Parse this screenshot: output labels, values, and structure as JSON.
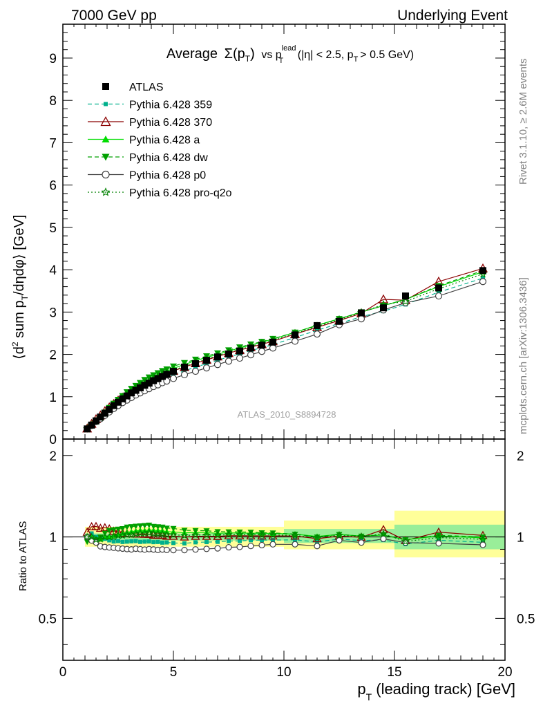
{
  "header": {
    "left": "7000 GeV pp",
    "right": "Underlying Event"
  },
  "side_labels": {
    "rivet": "Rivet 3.1.10, ≥ 2.6M events",
    "mcplots": "mcplots.cern.ch [arXiv:1306.3436]"
  },
  "watermark": "ATLAS_2010_S8894728",
  "colors": {
    "ATLAS": "#000000",
    "p359": "#00b08c",
    "p370": "#8b0000",
    "pa": "#00dd00",
    "pdw": "#00a000",
    "pp0": "#404040",
    "pq2o": "#008000",
    "band_inner": "#99ee99",
    "band_outer": "#ffff99"
  },
  "chart_data": [
    {
      "type": "line",
      "panel": "main",
      "title_parts": {
        "avg": "Average",
        "sigma": "Σ(p",
        "sigma_sub": "T",
        "sigma_close": ")",
        "vs": "vs p",
        "vs_sup": "lead",
        "vs_sub": "T",
        "cut1": "(|η| < 2.5, p",
        "cut_sub": "T",
        "cut2": "> 0.5 GeV)"
      },
      "ylabel_parts": {
        "a": "⟨d",
        "sup": "2",
        "b": " sum p",
        "sub": "T",
        "c": "/dηdφ⟩ [GeV]"
      },
      "xlim": [
        0,
        20
      ],
      "ylim": [
        0,
        9.8
      ],
      "yticks": [
        0,
        1,
        2,
        3,
        4,
        5,
        6,
        7,
        8,
        9
      ],
      "x": [
        1.1,
        1.3,
        1.5,
        1.7,
        1.9,
        2.1,
        2.3,
        2.5,
        2.7,
        2.9,
        3.1,
        3.3,
        3.5,
        3.7,
        3.9,
        4.1,
        4.3,
        4.5,
        4.7,
        5.0,
        5.5,
        6.0,
        6.5,
        7.0,
        7.5,
        8.0,
        8.5,
        9.0,
        9.5,
        10.5,
        11.5,
        12.5,
        13.5,
        14.5,
        15.5,
        17.0,
        19.0
      ],
      "series": [
        {
          "name": "ATLAS",
          "key": "ATLAS",
          "marker": "square",
          "line": "none",
          "values": [
            0.24,
            0.33,
            0.43,
            0.52,
            0.61,
            0.7,
            0.79,
            0.87,
            0.95,
            1.02,
            1.09,
            1.15,
            1.21,
            1.27,
            1.32,
            1.38,
            1.43,
            1.48,
            1.53,
            1.6,
            1.7,
            1.78,
            1.86,
            1.94,
            2.01,
            2.08,
            2.15,
            2.22,
            2.29,
            2.46,
            2.68,
            2.78,
            2.98,
            3.1,
            3.38,
            3.57,
            3.98
          ]
        },
        {
          "name": "Pythia 6.428 359",
          "key": "p359",
          "marker": "smallsquare",
          "line": "dashed",
          "values": [
            0.24,
            0.34,
            0.43,
            0.52,
            0.6,
            0.68,
            0.76,
            0.84,
            0.91,
            0.98,
            1.05,
            1.11,
            1.16,
            1.22,
            1.27,
            1.32,
            1.37,
            1.41,
            1.46,
            1.52,
            1.61,
            1.7,
            1.78,
            1.86,
            1.94,
            2.01,
            2.09,
            2.16,
            2.23,
            2.4,
            2.57,
            2.73,
            2.89,
            3.02,
            3.18,
            3.47,
            3.8
          ]
        },
        {
          "name": "Pythia 6.428 370",
          "key": "p370",
          "marker": "triangle-open",
          "line": "solid",
          "values": [
            0.25,
            0.36,
            0.47,
            0.56,
            0.66,
            0.75,
            0.83,
            0.91,
            0.98,
            1.05,
            1.12,
            1.18,
            1.24,
            1.3,
            1.35,
            1.4,
            1.45,
            1.5,
            1.54,
            1.61,
            1.7,
            1.79,
            1.87,
            1.95,
            2.03,
            2.1,
            2.17,
            2.24,
            2.31,
            2.48,
            2.64,
            2.8,
            2.97,
            3.3,
            3.28,
            3.72,
            4.03
          ]
        },
        {
          "name": "Pythia 6.428 a",
          "key": "pa",
          "marker": "triangle",
          "line": "solid",
          "values": [
            0.24,
            0.33,
            0.42,
            0.51,
            0.61,
            0.7,
            0.8,
            0.89,
            0.98,
            1.06,
            1.14,
            1.21,
            1.28,
            1.34,
            1.4,
            1.46,
            1.51,
            1.56,
            1.6,
            1.67,
            1.76,
            1.85,
            1.93,
            2.0,
            2.08,
            2.15,
            2.22,
            2.29,
            2.36,
            2.52,
            2.69,
            2.84,
            3.0,
            3.15,
            3.3,
            3.6,
            3.95
          ]
        },
        {
          "name": "Pythia 6.428 dw",
          "key": "pdw",
          "marker": "triangle-down",
          "line": "dashed",
          "values": [
            0.23,
            0.32,
            0.42,
            0.52,
            0.63,
            0.74,
            0.84,
            0.93,
            1.02,
            1.11,
            1.19,
            1.26,
            1.33,
            1.4,
            1.46,
            1.51,
            1.56,
            1.61,
            1.65,
            1.72,
            1.8,
            1.88,
            1.96,
            2.03,
            2.1,
            2.17,
            2.24,
            2.3,
            2.37,
            2.52,
            2.68,
            2.84,
            3.0,
            3.15,
            3.3,
            3.62,
            3.98
          ]
        },
        {
          "name": "Pythia 6.428 p0",
          "key": "pp0",
          "marker": "circle-open",
          "line": "solid",
          "values": [
            0.24,
            0.32,
            0.41,
            0.48,
            0.56,
            0.64,
            0.72,
            0.79,
            0.86,
            0.92,
            0.98,
            1.04,
            1.09,
            1.14,
            1.19,
            1.24,
            1.28,
            1.33,
            1.37,
            1.43,
            1.52,
            1.6,
            1.68,
            1.76,
            1.84,
            1.91,
            1.99,
            2.07,
            2.15,
            2.31,
            2.48,
            2.7,
            2.84,
            3.05,
            3.22,
            3.38,
            3.72
          ]
        },
        {
          "name": "Pythia 6.428 pro-q2o",
          "key": "pq2o",
          "marker": "star-open",
          "line": "dotted",
          "values": [
            0.24,
            0.33,
            0.42,
            0.51,
            0.61,
            0.7,
            0.79,
            0.88,
            0.96,
            1.04,
            1.11,
            1.18,
            1.25,
            1.31,
            1.37,
            1.42,
            1.47,
            1.52,
            1.56,
            1.63,
            1.72,
            1.81,
            1.89,
            1.97,
            2.05,
            2.12,
            2.19,
            2.26,
            2.33,
            2.49,
            2.66,
            2.82,
            2.99,
            3.18,
            3.25,
            3.55,
            3.9
          ]
        }
      ]
    },
    {
      "type": "line",
      "panel": "ratio",
      "ylabel": "Ratio to ATLAS",
      "xlabel_parts": {
        "a": "p",
        "sub": "T",
        "b": " (leading track) [GeV]"
      },
      "xlim": [
        0,
        20
      ],
      "ylim": [
        0.35,
        2.3
      ],
      "yticks": [
        0.5,
        1,
        2
      ],
      "ytick_labels": [
        "0.5",
        "1",
        "2"
      ],
      "xticks": [
        0,
        5,
        10,
        15,
        20
      ],
      "xtick_labels": [
        "0",
        "5",
        "10",
        "15",
        "20"
      ],
      "bands": [
        {
          "x0": 1.0,
          "x1": 10.0,
          "inner": [
            0.97,
            1.03
          ],
          "outer": [
            0.92,
            1.09
          ]
        },
        {
          "x0": 10.0,
          "x1": 15.0,
          "inner": [
            0.95,
            1.07
          ],
          "outer": [
            0.9,
            1.15
          ]
        },
        {
          "x0": 15.0,
          "x1": 20.0,
          "inner": [
            0.9,
            1.11
          ],
          "outer": [
            0.84,
            1.25
          ]
        }
      ]
    }
  ]
}
